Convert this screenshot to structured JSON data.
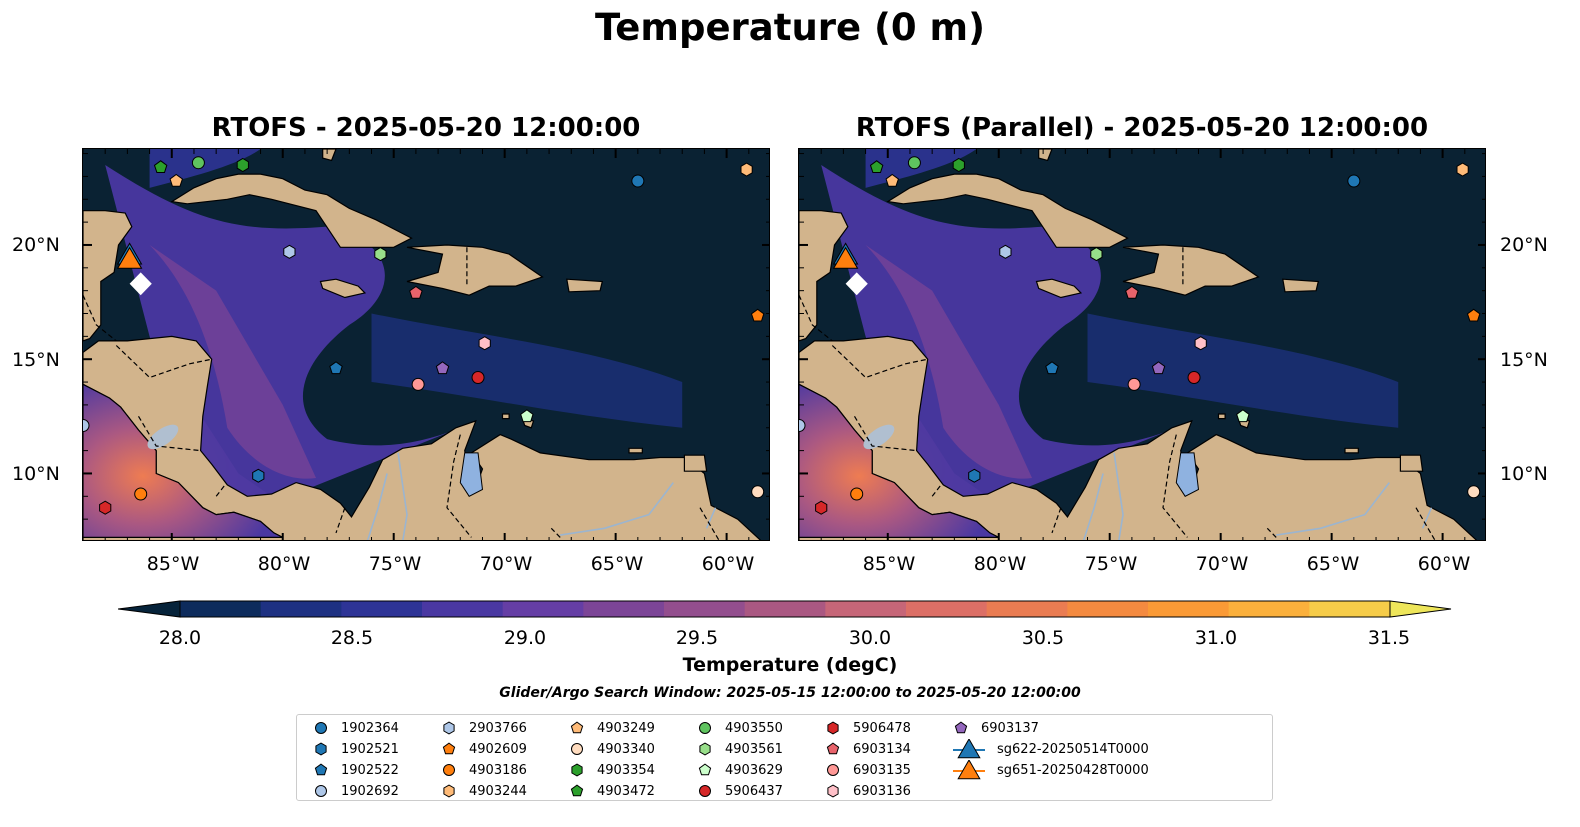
{
  "figure": {
    "title": "Temperature (0 m)",
    "search_window": "Glider/Argo Search Window: 2025-05-15 12:00:00 to 2025-05-20 12:00:00"
  },
  "panels": [
    {
      "title": "RTOFS - 2025-05-20 12:00:00"
    },
    {
      "title": "RTOFS (Parallel) - 2025-05-20 12:00:00"
    }
  ],
  "axes": {
    "lat_labels": [
      "20°N",
      "15°N",
      "10°N"
    ],
    "lon_labels": [
      "85°W",
      "80°W",
      "75°W",
      "70°W",
      "65°W",
      "60°W"
    ],
    "lon_range": [
      -89,
      -58
    ],
    "lat_range": [
      7,
      24.2
    ]
  },
  "colorbar": {
    "label": "Temperature (degC)",
    "min": 28.0,
    "max": 31.5,
    "step": 0.25,
    "ticks": [
      "28.0",
      "28.5",
      "29.0",
      "29.5",
      "30.0",
      "30.5",
      "31.0",
      "31.5"
    ],
    "colors": [
      "#06233a",
      "#0d2b5c",
      "#1e3182",
      "#2e3496",
      "#4a38a2",
      "#653ea5",
      "#7c4597",
      "#934e8e",
      "#aa5882",
      "#c66678",
      "#dc6f66",
      "#ea7c52",
      "#f48a40",
      "#fa9a36",
      "#fbb03c",
      "#f6cc49",
      "#eee65a"
    ]
  },
  "legend": [
    {
      "label": "1902364",
      "marker": "circle",
      "color": "#1f77b4"
    },
    {
      "label": "1902521",
      "marker": "hexagon",
      "color": "#1f77b4"
    },
    {
      "label": "1902522",
      "marker": "pentagon",
      "color": "#1f77b4"
    },
    {
      "label": "1902692",
      "marker": "circle",
      "color": "#aec7e8"
    },
    {
      "label": "2903766",
      "marker": "hexagon",
      "color": "#aec7e8"
    },
    {
      "label": "4902609",
      "marker": "pentagon",
      "color": "#ff7f0e"
    },
    {
      "label": "4903186",
      "marker": "circle",
      "color": "#ff7f0e"
    },
    {
      "label": "4903244",
      "marker": "hexagon",
      "color": "#ffbb78"
    },
    {
      "label": "4903249",
      "marker": "pentagon",
      "color": "#ffbb78"
    },
    {
      "label": "4903340",
      "marker": "circle",
      "color": "#ffdcbf"
    },
    {
      "label": "4903354",
      "marker": "hexagon",
      "color": "#2ca02c"
    },
    {
      "label": "4903472",
      "marker": "pentagon",
      "color": "#2ca02c"
    },
    {
      "label": "4903550",
      "marker": "circle",
      "color": "#5fc45f"
    },
    {
      "label": "4903561",
      "marker": "hexagon",
      "color": "#98df8a"
    },
    {
      "label": "4903629",
      "marker": "pentagon",
      "color": "#ccffcc"
    },
    {
      "label": "5906437",
      "marker": "circle",
      "color": "#d62728"
    },
    {
      "label": "5906478",
      "marker": "hexagon",
      "color": "#d62728"
    },
    {
      "label": "6903134",
      "marker": "pentagon",
      "color": "#e8636b"
    },
    {
      "label": "6903135",
      "marker": "circle",
      "color": "#ff9896"
    },
    {
      "label": "6903136",
      "marker": "hexagon",
      "color": "#ffc0c8"
    },
    {
      "label": "6903137",
      "marker": "pentagon",
      "color": "#9467bd"
    },
    {
      "label": "sg622-20250514T0000",
      "marker": "triangle",
      "color": "#1f77b4"
    },
    {
      "label": "sg651-20250428T0000",
      "marker": "triangle",
      "color": "#ff7f0e"
    }
  ],
  "floats": [
    {
      "id": "1902364",
      "lon": -64.0,
      "lat": 22.8
    },
    {
      "id": "1902521",
      "lon": -81.1,
      "lat": 9.9
    },
    {
      "id": "1902522",
      "lon": -77.6,
      "lat": 14.6
    },
    {
      "id": "1902692",
      "lon": -89.0,
      "lat": 12.1
    },
    {
      "id": "2903766",
      "lon": -79.7,
      "lat": 19.7
    },
    {
      "id": "4902609",
      "lon": -58.6,
      "lat": 16.9
    },
    {
      "id": "4903186",
      "lon": -86.4,
      "lat": 9.1
    },
    {
      "id": "4903244",
      "lon": -59.1,
      "lat": 23.3
    },
    {
      "id": "4903249",
      "lon": -84.8,
      "lat": 22.8
    },
    {
      "id": "4903340",
      "lon": -58.6,
      "lat": 9.2
    },
    {
      "id": "4903354",
      "lon": -81.8,
      "lat": 23.5
    },
    {
      "id": "4903472",
      "lon": -85.5,
      "lat": 23.4
    },
    {
      "id": "4903550",
      "lon": -83.8,
      "lat": 23.6
    },
    {
      "id": "4903561",
      "lon": -75.6,
      "lat": 19.6
    },
    {
      "id": "4903629",
      "lon": -69.0,
      "lat": 12.5
    },
    {
      "id": "5906437",
      "lon": -71.2,
      "lat": 14.2
    },
    {
      "id": "5906478",
      "lon": -88.0,
      "lat": 8.5
    },
    {
      "id": "6903134",
      "lon": -74.0,
      "lat": 17.9
    },
    {
      "id": "6903135",
      "lon": -73.9,
      "lat": 13.9
    },
    {
      "id": "6903136",
      "lon": -70.9,
      "lat": 15.7
    },
    {
      "id": "6903137",
      "lon": -72.8,
      "lat": 14.6
    }
  ],
  "gliders": [
    {
      "id": "sg622-20250514T0000",
      "lon": -86.9,
      "lat": 19.5
    },
    {
      "id": "sg651-20250428T0000",
      "lon": -86.9,
      "lat": 19.4
    }
  ]
}
